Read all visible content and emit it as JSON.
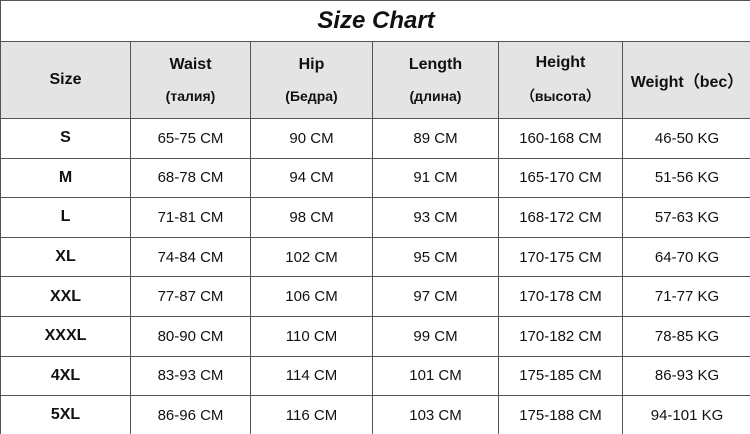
{
  "title": "Size Chart",
  "headers": [
    {
      "main": "Size",
      "sub": ""
    },
    {
      "main": "Waist",
      "sub": "(талия)"
    },
    {
      "main": "Hip",
      "sub": "(Бедра)"
    },
    {
      "main": "Length",
      "sub": "(длина)"
    },
    {
      "main": "Height",
      "sub": "（высота）"
    },
    {
      "main": "Weight（bec）",
      "sub": ""
    }
  ],
  "rows": [
    [
      "S",
      "65-75 CM",
      "90 CM",
      "89 CM",
      "160-168 CM",
      "46-50 KG"
    ],
    [
      "M",
      "68-78 CM",
      "94 CM",
      "91 CM",
      "165-170 CM",
      "51-56 KG"
    ],
    [
      "L",
      "71-81 CM",
      "98 CM",
      "93 CM",
      "168-172 CM",
      "57-63 KG"
    ],
    [
      "XL",
      "74-84 CM",
      "102 CM",
      "95 CM",
      "170-175 CM",
      "64-70 KG"
    ],
    [
      "XXL",
      "77-87 CM",
      "106 CM",
      "97 CM",
      "170-178 CM",
      "71-77 KG"
    ],
    [
      "XXXL",
      "80-90 CM",
      "110 CM",
      "99 CM",
      "170-182 CM",
      "78-85 KG"
    ],
    [
      "4XL",
      "83-93 CM",
      "114 CM",
      "101 CM",
      "175-185 CM",
      "86-93 KG"
    ],
    [
      "5XL",
      "86-96 CM",
      "116 CM",
      "103 CM",
      "175-188 CM",
      "94-101 KG"
    ]
  ]
}
